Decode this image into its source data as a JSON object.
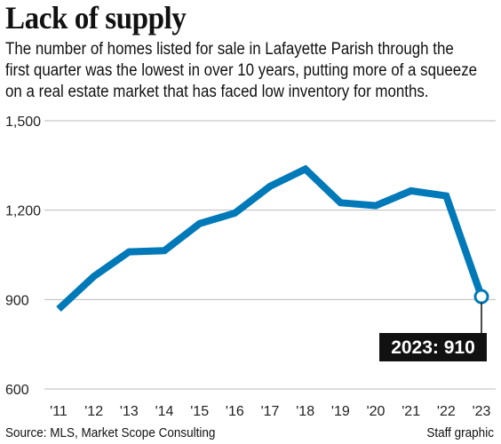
{
  "header": {
    "title": "Lack of supply",
    "subtitle": "The number of homes listed for sale in Lafayette Parish through the first quarter was the lowest in over 10 years, putting more of a squeeze on a real estate market that has faced low inventory for months."
  },
  "footer": {
    "source": "Source: MLS, Market Scope Consulting",
    "credit": "Staff graphic"
  },
  "colors": {
    "line": "#0079b8",
    "callout_bg": "#111111",
    "callout_text": "#ffffff",
    "grid": "#bbbbbb"
  },
  "chart_data": {
    "type": "line",
    "title": "",
    "xlabel": "",
    "ylabel": "",
    "categories": [
      "'11",
      "'12",
      "'13",
      "'14",
      "'15",
      "'16",
      "'17",
      "'18",
      "'19",
      "'20",
      "'21",
      "'22",
      "'23"
    ],
    "values": [
      868,
      978,
      1060,
      1064,
      1155,
      1190,
      1280,
      1338,
      1225,
      1215,
      1265,
      1248,
      910
    ],
    "ylim": [
      600,
      1500
    ],
    "yticks": [
      600,
      900,
      1200,
      1500
    ],
    "ytick_labels": [
      "600",
      "900",
      "1,200",
      "1,500"
    ],
    "grid": true,
    "legend": "none",
    "annotation": {
      "index": 12,
      "text": "2023: 910"
    }
  }
}
